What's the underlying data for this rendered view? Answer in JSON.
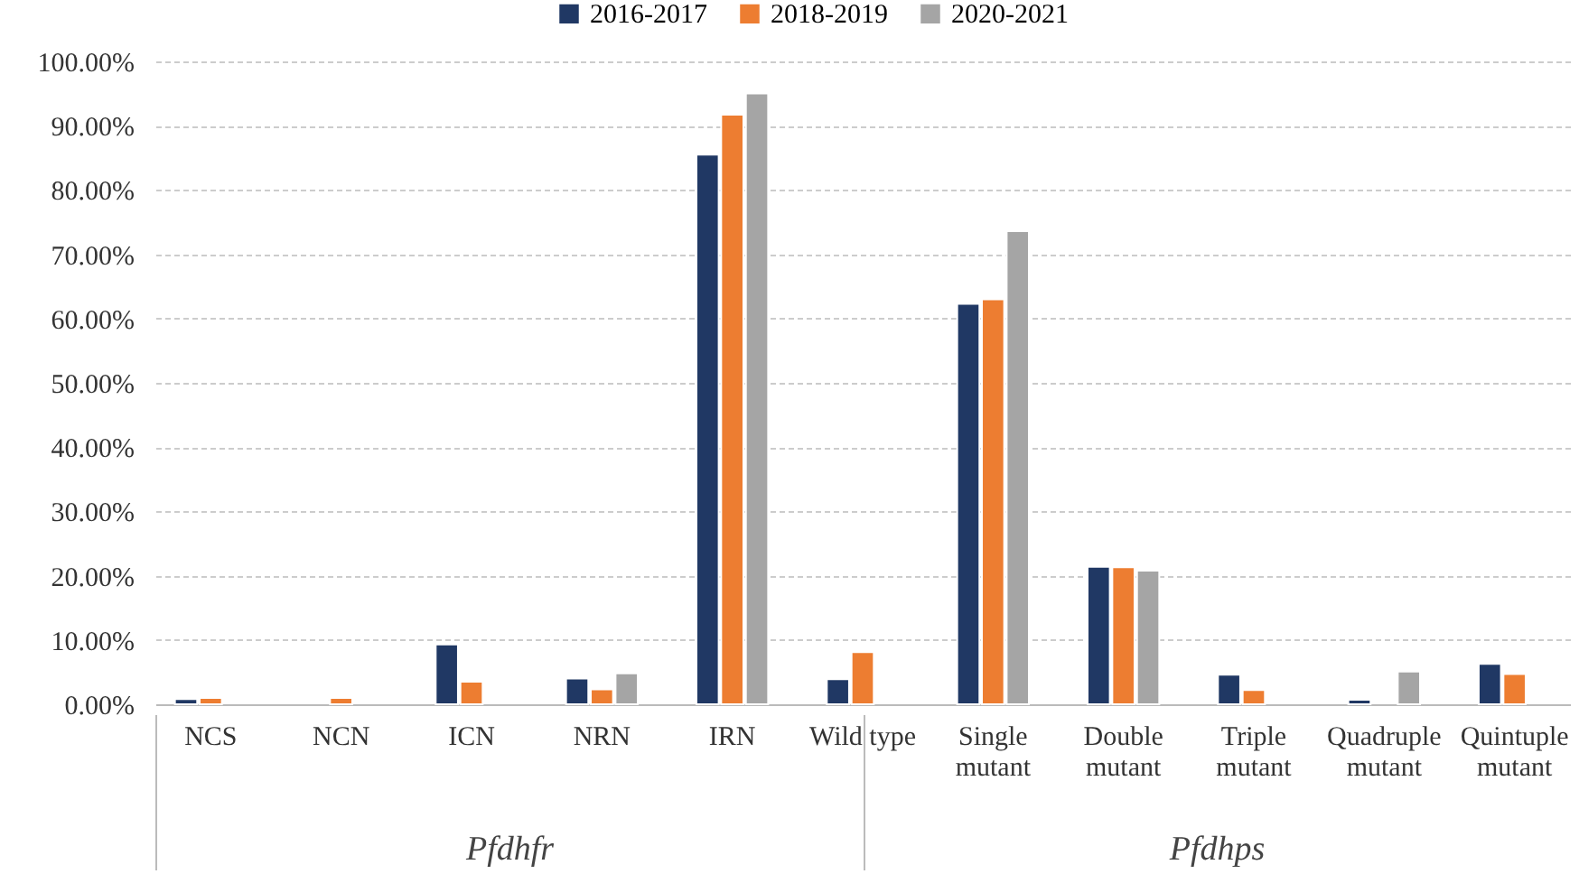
{
  "chart_data": {
    "type": "bar",
    "categories": [
      "NCS",
      "NCN",
      "ICN",
      "NRN",
      "IRN",
      "Wild type",
      "Single mutant",
      "Double mutant",
      "Triple mutant",
      "Quadruple mutant",
      "Quintuple mutant"
    ],
    "series": [
      {
        "name": "2016-2017",
        "color": "#203864",
        "values": [
          0.8,
          null,
          9.3,
          4.0,
          85.5,
          3.9,
          62.3,
          21.4,
          4.6,
          0.7,
          6.3
        ]
      },
      {
        "name": "2018-2019",
        "color": "#ed7d31",
        "values": [
          1.0,
          1.0,
          3.5,
          2.3,
          91.7,
          8.1,
          63.0,
          21.3,
          2.2,
          null,
          4.7
        ]
      },
      {
        "name": "2020-2021",
        "color": "#a5a5a5",
        "values": [
          null,
          null,
          null,
          4.8,
          95.0,
          null,
          73.6,
          20.8,
          null,
          5.1,
          null
        ]
      }
    ],
    "ylim": [
      0,
      100
    ],
    "yticks": [
      {
        "value": 0,
        "label": "0.00%"
      },
      {
        "value": 10,
        "label": "10.00%"
      },
      {
        "value": 20,
        "label": "20.00%"
      },
      {
        "value": 30,
        "label": "30.00%"
      },
      {
        "value": 40,
        "label": "40.00%"
      },
      {
        "value": 50,
        "label": "50.00%"
      },
      {
        "value": 60,
        "label": "60.00%"
      },
      {
        "value": 70,
        "label": "70.00%"
      },
      {
        "value": 80,
        "label": "80.00%"
      },
      {
        "value": 90,
        "label": "90.00%"
      },
      {
        "value": 100,
        "label": "100.00%"
      }
    ],
    "grid": "y",
    "legend": "top",
    "annotations": [
      "Pfdhfr",
      "Pfdhps"
    ]
  }
}
